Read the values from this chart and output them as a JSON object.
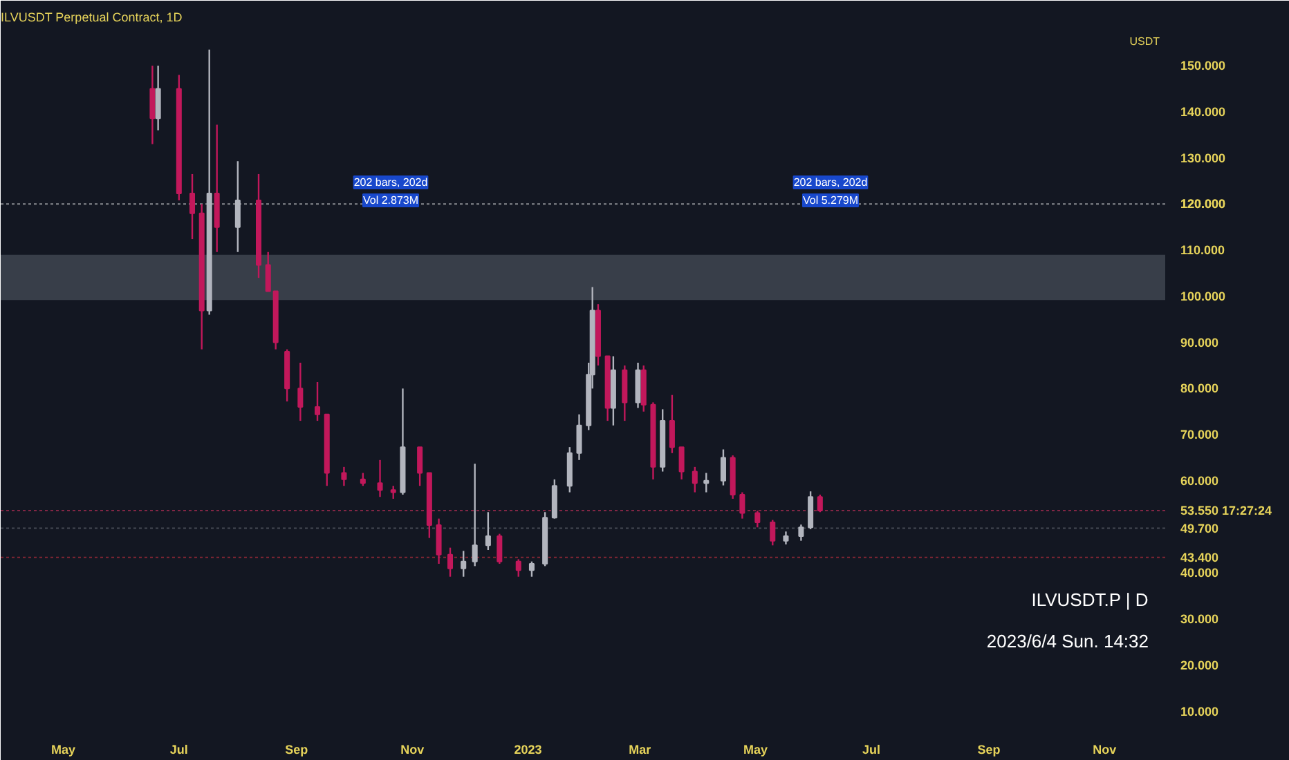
{
  "chart_data": {
    "type": "candlestick",
    "title": "ILVUSDT Perpetual Contract, 1D",
    "ylabel": "USDT",
    "annotations": [
      "202 bars, 202d\nVol 2.873M",
      "202 bars, 202d\nVol 5.279M",
      "ILVUSDT.P | D",
      "2023/6/4 Sun. 14:32"
    ],
    "x": [
      "2022-06-17",
      "2022-06-20",
      "2022-07-01",
      "2022-07-08",
      "2022-07-13",
      "2022-07-17",
      "2022-07-21",
      "2022-08-01",
      "2022-08-12",
      "2022-08-17",
      "2022-08-21",
      "2022-08-27",
      "2022-09-03",
      "2022-09-12",
      "2022-09-17",
      "2022-09-26",
      "2022-10-06",
      "2022-10-15",
      "2022-10-22",
      "2022-10-27",
      "2022-11-05",
      "2022-11-10",
      "2022-11-15",
      "2022-11-21",
      "2022-11-28",
      "2022-12-04",
      "2022-12-11",
      "2022-12-17",
      "2022-12-27",
      "2023-01-03",
      "2023-01-10",
      "2023-01-15",
      "2023-01-23",
      "2023-01-28",
      "2023-02-02",
      "2023-02-04",
      "2023-02-07",
      "2023-02-12",
      "2023-02-15",
      "2023-02-21",
      "2023-02-28",
      "2023-03-03",
      "2023-03-08",
      "2023-03-13",
      "2023-03-18",
      "2023-03-23",
      "2023-03-30",
      "2023-04-05",
      "2023-04-14",
      "2023-04-19",
      "2023-04-24",
      "2023-05-02",
      "2023-05-10",
      "2023-05-17",
      "2023-05-25",
      "2023-05-30",
      "2023-06-04"
    ],
    "ohlc": [
      [
        145,
        150,
        133,
        138.6
      ],
      [
        138.6,
        150,
        136,
        145
      ],
      [
        145,
        148,
        120.8,
        122.3
      ],
      [
        122.3,
        126.5,
        112.4,
        118
      ],
      [
        118,
        120,
        88.5,
        96.9
      ],
      [
        96.9,
        153.5,
        96,
        122.3
      ],
      [
        122.3,
        137.2,
        109.6,
        115
      ],
      [
        115,
        129.3,
        109.6,
        120.8
      ],
      [
        120.8,
        126.5,
        104,
        106.8
      ],
      [
        106.8,
        109.6,
        101.1,
        101.1
      ],
      [
        101.1,
        101.1,
        88.5,
        90
      ],
      [
        88,
        88.5,
        77.2,
        80
      ],
      [
        80,
        85.6,
        73,
        76
      ],
      [
        76,
        81.4,
        73,
        74.4
      ],
      [
        74.4,
        74.4,
        58.9,
        61.7
      ],
      [
        61.7,
        63,
        58.9,
        60.3
      ],
      [
        60.3,
        61.7,
        58.9,
        59.5
      ],
      [
        59.5,
        64.5,
        56.5,
        58
      ],
      [
        58,
        58.9,
        56.1,
        57.5
      ],
      [
        57.5,
        80,
        57,
        67.3
      ],
      [
        67.3,
        67.3,
        58.9,
        61.7
      ],
      [
        61.7,
        61.7,
        47.6,
        50.4
      ],
      [
        50.4,
        51.8,
        42,
        44
      ],
      [
        44,
        45.5,
        39.2,
        41
      ],
      [
        41,
        44.8,
        39.2,
        42.5
      ],
      [
        42.5,
        63.7,
        41.5,
        46
      ],
      [
        46,
        53.2,
        45,
        48
      ],
      [
        48,
        48.5,
        42,
        42.5
      ],
      [
        42.5,
        43,
        39.2,
        40.6
      ],
      [
        40.6,
        42.5,
        39.2,
        42
      ],
      [
        42,
        53.2,
        41.5,
        52
      ],
      [
        52,
        60.3,
        51.8,
        58.9
      ],
      [
        58.9,
        67.3,
        57.5,
        66
      ],
      [
        66,
        74.4,
        64.5,
        72
      ],
      [
        72,
        85.6,
        71,
        83
      ],
      [
        83,
        102,
        80,
        96.9
      ],
      [
        96.9,
        98.3,
        85,
        87
      ],
      [
        87,
        87,
        73,
        75.8
      ],
      [
        75.8,
        87,
        72,
        84
      ],
      [
        84,
        85,
        73,
        77
      ],
      [
        77,
        85.6,
        75.8,
        84
      ],
      [
        84,
        85,
        75,
        76.5
      ],
      [
        76.5,
        77,
        60.3,
        63
      ],
      [
        63,
        75.5,
        62,
        73
      ],
      [
        73,
        78.6,
        66,
        67.3
      ],
      [
        67.3,
        67.3,
        60.3,
        62
      ],
      [
        62,
        63,
        57.5,
        59.5
      ],
      [
        59.5,
        61.7,
        57.5,
        60
      ],
      [
        60,
        66.8,
        59,
        65
      ],
      [
        65,
        65.5,
        56.1,
        57
      ],
      [
        57,
        57.5,
        51.8,
        53
      ],
      [
        53,
        53.5,
        49.9,
        51
      ],
      [
        51,
        51.5,
        46,
        47
      ],
      [
        47,
        49,
        46.2,
        48
      ],
      [
        48,
        50.5,
        47,
        49.9
      ],
      [
        49.9,
        57.7,
        49.5,
        56.5
      ],
      [
        56.5,
        57,
        53.2,
        53.55
      ]
    ],
    "colors": [
      "#c2185b",
      "#b2b5be",
      "#c2185b",
      "#c2185b",
      "#c2185b",
      "#b2b5be",
      "#c2185b",
      "#b2b5be",
      "#c2185b",
      "#c2185b",
      "#c2185b",
      "#c2185b",
      "#c2185b",
      "#c2185b",
      "#c2185b",
      "#c2185b",
      "#c2185b",
      "#c2185b",
      "#c2185b",
      "#b2b5be",
      "#c2185b",
      "#c2185b",
      "#c2185b",
      "#c2185b",
      "#b2b5be",
      "#b2b5be",
      "#b2b5be",
      "#c2185b",
      "#c2185b",
      "#b2b5be",
      "#b2b5be",
      "#b2b5be",
      "#b2b5be",
      "#b2b5be",
      "#b2b5be",
      "#b2b5be",
      "#c2185b",
      "#c2185b",
      "#b2b5be",
      "#c2185b",
      "#b2b5be",
      "#c2185b",
      "#c2185b",
      "#b2b5be",
      "#c2185b",
      "#c2185b",
      "#c2185b",
      "#b2b5be",
      "#b2b5be",
      "#c2185b",
      "#c2185b",
      "#c2185b",
      "#c2185b",
      "#b2b5be",
      "#b2b5be",
      "#b2b5be",
      "#c2185b"
    ],
    "xlim": [
      "2022-03-29",
      "2023-12-03"
    ],
    "xticks": [
      {
        "value": "2022-05-01",
        "label": "May"
      },
      {
        "value": "2022-07-01",
        "label": "Jul"
      },
      {
        "value": "2022-09-01",
        "label": "Sep"
      },
      {
        "value": "2022-11-01",
        "label": "Nov"
      },
      {
        "value": "2023-01-01",
        "label": "2023"
      },
      {
        "value": "2023-03-01",
        "label": "Mar"
      },
      {
        "value": "2023-05-01",
        "label": "May"
      },
      {
        "value": "2023-07-01",
        "label": "Jul"
      },
      {
        "value": "2023-09-01",
        "label": "Sep"
      },
      {
        "value": "2023-11-01",
        "label": "Nov"
      }
    ],
    "ylim": [
      6.5,
      157.5
    ],
    "yticks": [
      {
        "value": 10,
        "label": "10.000"
      },
      {
        "value": 20,
        "label": "20.000"
      },
      {
        "value": 30,
        "label": "30.000"
      },
      {
        "value": 40,
        "label": "40.000"
      },
      {
        "value": 50,
        "label": null
      },
      {
        "value": 60,
        "label": "60.000"
      },
      {
        "value": 70,
        "label": "70.000"
      },
      {
        "value": 80,
        "label": "80.000"
      },
      {
        "value": 90,
        "label": "90.000"
      },
      {
        "value": 100,
        "label": "100.000"
      },
      {
        "value": 110,
        "label": "110.000"
      },
      {
        "value": 120,
        "label": null
      },
      {
        "value": 130,
        "label": "130.000"
      },
      {
        "value": 140,
        "label": "140.000"
      },
      {
        "value": 150,
        "label": "150.000"
      }
    ],
    "ref_lines": [
      {
        "axis": "y",
        "value": 120,
        "label": "120.000",
        "color": "#ffffff"
      },
      {
        "axis": "y",
        "value": 53.55,
        "label": "53.550 17:27:24",
        "color": "#f23668"
      },
      {
        "axis": "y",
        "value": 49.7,
        "label": "49.700",
        "color": "#787b86"
      },
      {
        "axis": "y",
        "value": 43.4,
        "label": "43.400",
        "color": "#f23645"
      }
    ],
    "bands": [
      {
        "axis": "y",
        "from": 99.2,
        "to": 109,
        "color": "#5d6670"
      }
    ],
    "grid": false
  }
}
